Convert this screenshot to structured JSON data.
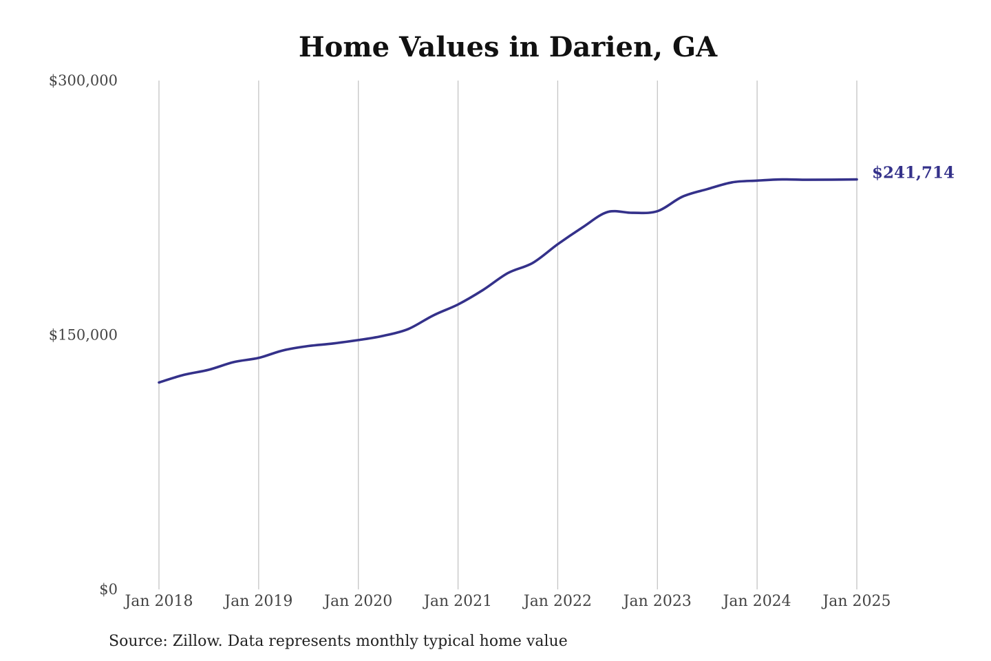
{
  "chart_data": {
    "type": "line",
    "title": "Home Values in Darien, GA",
    "source": "Source: Zillow. Data represents monthly typical home value",
    "xlabel": "",
    "ylabel": "",
    "x_ticks": [
      "Jan 2018",
      "Jan 2019",
      "Jan 2020",
      "Jan 2021",
      "Jan 2022",
      "Jan 2023",
      "Jan 2024",
      "Jan 2025"
    ],
    "y_ticks": [
      {
        "value": 0,
        "label": "$0"
      },
      {
        "value": 150000,
        "label": "$150,000"
      },
      {
        "value": 300000,
        "label": "$300,000"
      }
    ],
    "xlim": [
      "2018-01",
      "2025-01"
    ],
    "ylim": [
      0,
      300000
    ],
    "grid": "vertical",
    "line_color": "#34318a",
    "end_label": "$241,714",
    "series": [
      {
        "x": [
          "2018-01",
          "2018-04",
          "2018-07",
          "2018-10",
          "2019-01",
          "2019-04",
          "2019-07",
          "2019-10",
          "2020-01",
          "2020-04",
          "2020-07",
          "2020-10",
          "2021-01",
          "2021-04",
          "2021-07",
          "2021-10",
          "2022-01",
          "2022-04",
          "2022-07",
          "2022-10",
          "2023-01",
          "2023-04",
          "2023-07",
          "2023-10",
          "2024-01",
          "2024-04",
          "2024-07",
          "2024-10",
          "2025-01"
        ],
        "values": [
          122000,
          126500,
          129500,
          134000,
          136500,
          141000,
          143500,
          145000,
          147000,
          149500,
          153500,
          161500,
          168000,
          176500,
          186500,
          192500,
          203500,
          213500,
          222500,
          222000,
          223000,
          231500,
          236000,
          240000,
          241000,
          241700,
          241500,
          241600,
          241714
        ]
      }
    ]
  }
}
